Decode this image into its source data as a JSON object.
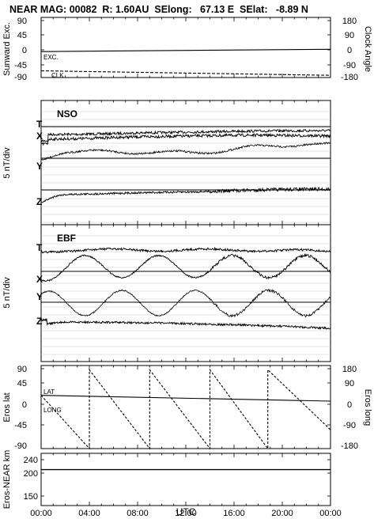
{
  "title": "NEAR MAG: 00082  R: 1.60AU  SElong:   67.13 E  SElat:   -8.89 N",
  "xaxis": {
    "label": "UTC",
    "ticks": [
      "00:00",
      "04:00",
      "08:00",
      "12:00",
      "16:00",
      "20:00",
      "00:00"
    ]
  },
  "chart_data": [
    {
      "type": "line",
      "panel": "sunward",
      "ylabel": "Sunward Exc.",
      "y2label": "Clock Angle",
      "yticks": [
        "90",
        "45",
        "0",
        "-45",
        "-90"
      ],
      "y2ticks": [
        "180",
        "90",
        "0",
        "-90",
        "-180"
      ],
      "ylim": [
        -90,
        90
      ],
      "y2lim": [
        -180,
        180
      ],
      "series": [
        {
          "name": "EXC.",
          "style": "solid",
          "x": [
            0,
            24
          ],
          "y": [
            -4,
            3
          ],
          "axis": "left"
        },
        {
          "name": "CLK",
          "style": "dashed",
          "x": [
            0,
            24
          ],
          "y": [
            -125,
            -152
          ],
          "axis": "right"
        }
      ]
    },
    {
      "type": "line",
      "panel": "NSO",
      "label": "NSO",
      "ylabel": "5 nT/div",
      "components": [
        "T",
        "X",
        "Y",
        "Z"
      ]
    },
    {
      "type": "line",
      "panel": "EBF",
      "label": "EBF",
      "ylabel": "5 nT/div",
      "components": [
        "T",
        "X",
        "Y",
        "Z"
      ]
    },
    {
      "type": "line",
      "panel": "eros",
      "ylabel": "Eros lat",
      "y2label": "Eros long",
      "yticks": [
        "90",
        "45",
        "0",
        "-45",
        "-90"
      ],
      "y2ticks": [
        "180",
        "90",
        "0",
        "-90",
        "-180"
      ],
      "ylim": [
        -90,
        90
      ],
      "y2lim": [
        -180,
        180
      ],
      "series": [
        {
          "name": "LAT",
          "style": "solid",
          "axis": "left",
          "x": [
            0,
            24
          ],
          "y": [
            30,
            17
          ]
        },
        {
          "name": "LONG",
          "style": "dashed",
          "axis": "right",
          "x": [
            0,
            4,
            4,
            9,
            9,
            14,
            14,
            18.8,
            18.8,
            24
          ],
          "y": [
            60,
            -180,
            175,
            -180,
            175,
            -180,
            175,
            -180,
            175,
            -95
          ]
        }
      ]
    },
    {
      "type": "line",
      "panel": "range",
      "ylabel": "Eros-NEAR km",
      "yticks": [
        "240",
        "200",
        "150"
      ],
      "ylim": [
        100,
        260
      ],
      "series": [
        {
          "name": "range",
          "style": "solid",
          "x": [
            0,
            24
          ],
          "y": [
            210,
            210
          ]
        }
      ]
    }
  ]
}
